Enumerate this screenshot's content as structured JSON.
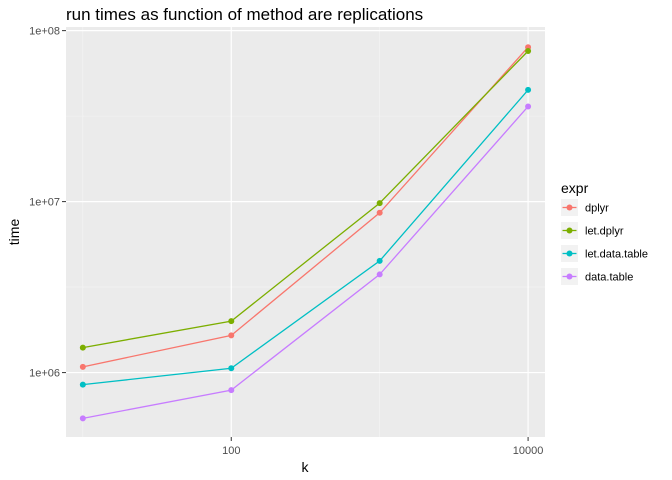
{
  "chart_data": {
    "type": "line",
    "title": "run times as function of method are replications",
    "xlabel": "k",
    "ylabel": "time",
    "x_scale": "log10",
    "y_scale": "log10",
    "xlim": [
      7.7,
      13000
    ],
    "ylim": [
      420000,
      105000000
    ],
    "x": [
      10,
      100,
      1000,
      10000
    ],
    "x_ticks": [
      100,
      10000
    ],
    "x_tick_labels": [
      "100",
      "10000"
    ],
    "y_ticks": [
      1000000,
      10000000,
      100000000
    ],
    "y_tick_labels": [
      "1e+06",
      "1e+07",
      "1e+08"
    ],
    "grid": true,
    "legend": {
      "title": "expr",
      "position": "right"
    },
    "series": [
      {
        "name": "dplyr",
        "color": "#F8766D",
        "values": [
          1080000,
          1650000,
          8600000,
          80000000
        ]
      },
      {
        "name": "let.dplyr",
        "color": "#7CAE00",
        "values": [
          1400000,
          2000000,
          9800000,
          76000000
        ]
      },
      {
        "name": "let.data.table",
        "color": "#00BFC4",
        "values": [
          850000,
          1060000,
          4500000,
          45000000
        ]
      },
      {
        "name": "data.table",
        "color": "#C77CFF",
        "values": [
          540000,
          790000,
          3750000,
          36000000
        ]
      }
    ]
  }
}
